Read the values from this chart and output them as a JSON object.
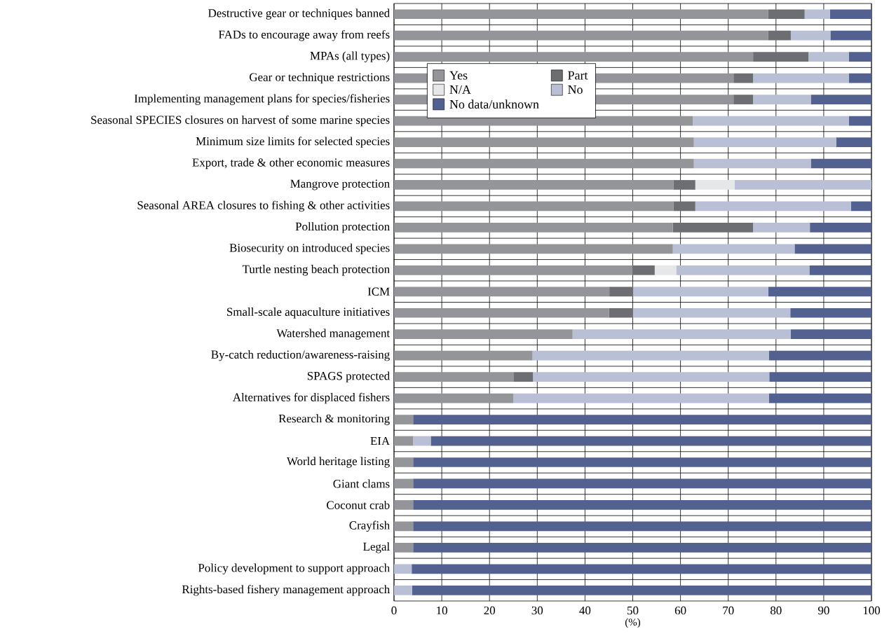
{
  "chart_data": {
    "type": "bar",
    "orientation": "horizontal",
    "stacked": true,
    "xlabel": "(%)",
    "categories": [
      "Destructive gear or techniques banned",
      "FADs to encourage away from reefs",
      "MPAs (all types)",
      "Gear or technique restrictions",
      "Implementing management plans for species/fisheries",
      "Seasonal SPECIES closures on harvest of some marine species",
      "Minimum size limits for selected species",
      "Export, trade & other economic measures",
      "Mangrove protection",
      "Seasonal AREA closures to fishing & other activities",
      "Pollution protection",
      "Biosecurity on introduced species",
      "Turtle nesting beach protection",
      "ICM",
      "Small-scale aquaculture initiatives",
      "Watershed management",
      "By-catch reduction/awareness-raising",
      "SPAGS protected",
      "Alternatives for displaced fishers",
      "Research & monitoring",
      "EIA",
      "World heritage listing",
      "Giant clams",
      "Coconut crab",
      "Crayfish",
      "Legal",
      "Policy development to support approach",
      "Rights-based fishery management approach"
    ],
    "series": [
      {
        "name": "Yes",
        "color": "#939598",
        "values": [
          78.4,
          78.4,
          75.2,
          71.1,
          71.1,
          62.6,
          62.8,
          62.8,
          58.5,
          58.5,
          58.4,
          58.4,
          50.0,
          45.1,
          45.0,
          37.4,
          29.0,
          25.0,
          25.0,
          4.0,
          4.0,
          4.0,
          4.0,
          4.0,
          4.0,
          4.0,
          0,
          0
        ]
      },
      {
        "name": "Part",
        "color": "#6d6e71",
        "values": [
          7.6,
          4.7,
          11.6,
          4.1,
          4.1,
          0,
          0,
          0,
          4.6,
          4.6,
          16.8,
          0,
          4.6,
          5.0,
          5.0,
          0,
          0,
          4.1,
          0,
          0,
          0,
          0,
          0,
          0,
          0,
          0,
          0,
          0
        ]
      },
      {
        "name": "N/A",
        "color": "#e6e7e8",
        "values": [
          0,
          0,
          0,
          0,
          0,
          0,
          0,
          0,
          8.2,
          0,
          0,
          0,
          4.5,
          0,
          0,
          0,
          0,
          0,
          0,
          0,
          0,
          0,
          0,
          0,
          0,
          0,
          0,
          0
        ]
      },
      {
        "name": "No",
        "color": "#b9bfd4",
        "values": [
          5.3,
          8.3,
          8.5,
          20.1,
          12.1,
          32.7,
          29.8,
          24.5,
          28.7,
          32.6,
          11.9,
          25.5,
          27.9,
          28.3,
          33.0,
          45.7,
          49.5,
          49.5,
          53.5,
          0,
          3.7,
          0,
          0,
          0,
          0,
          0,
          3.7,
          3.8
        ]
      },
      {
        "name": "No data/unknown",
        "color": "#52618f",
        "values": [
          8.7,
          8.6,
          4.7,
          4.7,
          12.7,
          4.7,
          7.4,
          12.7,
          0,
          4.3,
          12.9,
          16.1,
          13.0,
          21.6,
          17.0,
          16.9,
          21.5,
          21.4,
          21.5,
          96.0,
          92.3,
          96.0,
          96.0,
          96.0,
          96.0,
          96.0,
          96.3,
          96.2
        ]
      }
    ],
    "xlim": [
      0,
      100
    ],
    "xticks": [
      0,
      10,
      20,
      30,
      40,
      50,
      60,
      70,
      80,
      90,
      100
    ],
    "grid": true,
    "legend": "top left"
  }
}
